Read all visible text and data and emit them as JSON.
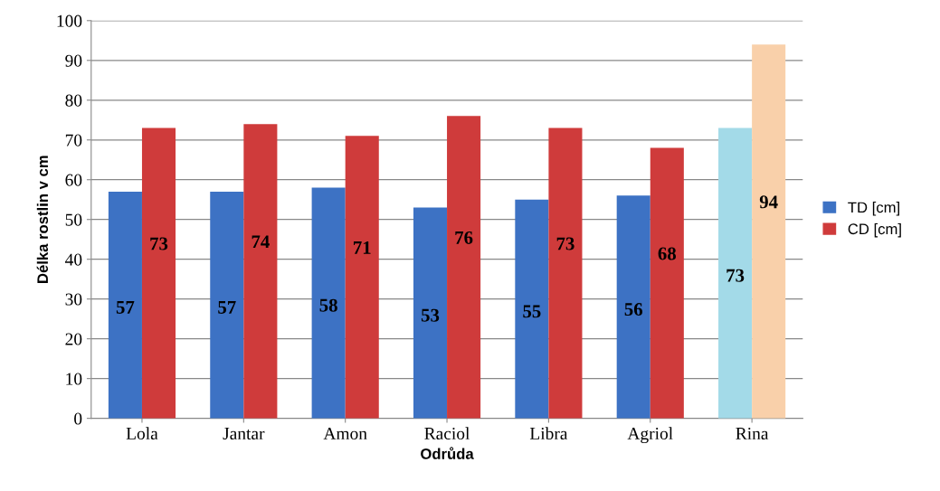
{
  "chart_data": {
    "type": "bar",
    "xlabel": "Odrůda",
    "ylabel": "Délka rostlin v cm",
    "categories": [
      "Lola",
      "Jantar",
      "Amon",
      "Raciol",
      "Libra",
      "Agriol",
      "Rina"
    ],
    "series": [
      {
        "name": "TD [cm]",
        "color": "#3d72c4",
        "colors": [
          "#3d72c4",
          "#3d72c4",
          "#3d72c4",
          "#3d72c4",
          "#3d72c4",
          "#3d72c4",
          "#a3dae8"
        ],
        "values": [
          57,
          57,
          58,
          53,
          55,
          56,
          73
        ]
      },
      {
        "name": "CD [cm]",
        "color": "#cf3b3b",
        "colors": [
          "#cf3b3b",
          "#cf3b3b",
          "#cf3b3b",
          "#cf3b3b",
          "#cf3b3b",
          "#cf3b3b",
          "#f9d0aa"
        ],
        "values": [
          73,
          74,
          71,
          76,
          73,
          68,
          94
        ]
      }
    ],
    "ylim": [
      0,
      100
    ],
    "yticks": [
      0,
      10,
      20,
      30,
      40,
      50,
      60,
      70,
      80,
      90,
      100
    ],
    "grid": "y",
    "legend": "right",
    "data_labels": true
  }
}
